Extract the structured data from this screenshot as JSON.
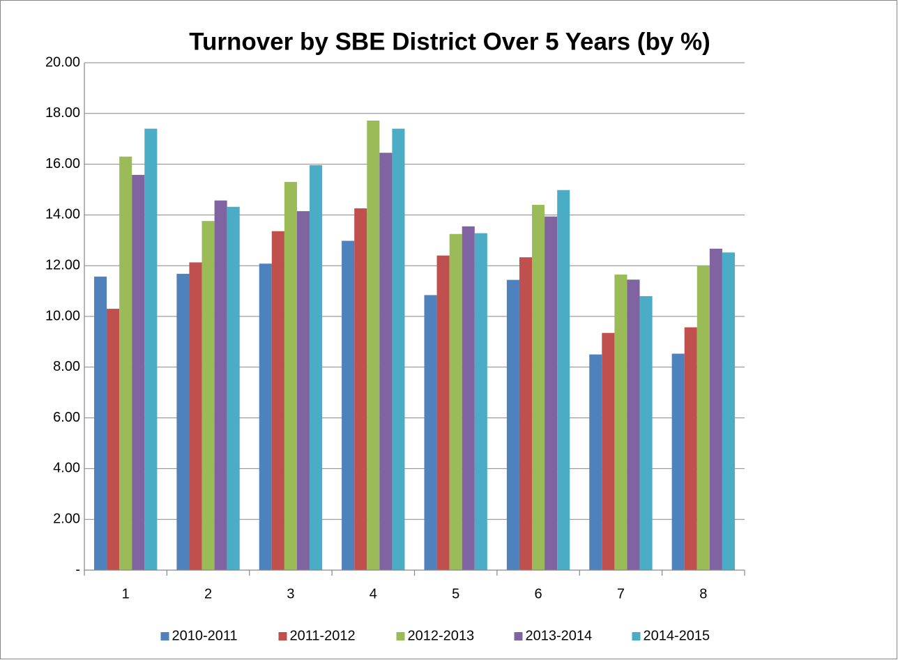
{
  "chart_data": {
    "type": "bar",
    "title": "Turnover by SBE District Over 5 Years (by %)",
    "categories": [
      "1",
      "2",
      "3",
      "4",
      "5",
      "6",
      "7",
      "8"
    ],
    "series": [
      {
        "name": "2010-2011",
        "color": "#4f81bd",
        "values": [
          11.57,
          11.68,
          12.08,
          12.98,
          10.84,
          11.44,
          8.5,
          8.53
        ]
      },
      {
        "name": "2011-2012",
        "color": "#c0504d",
        "values": [
          10.3,
          12.13,
          13.36,
          14.26,
          12.4,
          12.33,
          9.35,
          9.57
        ]
      },
      {
        "name": "2012-2013",
        "color": "#9bbb59",
        "values": [
          16.3,
          13.76,
          15.3,
          17.72,
          13.25,
          14.4,
          11.65,
          11.98
        ]
      },
      {
        "name": "2013-2014",
        "color": "#8064a2",
        "values": [
          15.58,
          14.57,
          14.15,
          16.45,
          13.55,
          13.94,
          11.45,
          12.67
        ]
      },
      {
        "name": "2014-2015",
        "color": "#4bacc6",
        "values": [
          17.4,
          14.32,
          15.96,
          17.4,
          13.28,
          14.98,
          10.8,
          12.52
        ]
      }
    ],
    "ylim": [
      0,
      20
    ],
    "yticks": [
      {
        "value": 0,
        "label": "-"
      },
      {
        "value": 2,
        "label": "2.00"
      },
      {
        "value": 4,
        "label": "4.00"
      },
      {
        "value": 6,
        "label": "6.00"
      },
      {
        "value": 8,
        "label": "8.00"
      },
      {
        "value": 10,
        "label": "10.00"
      },
      {
        "value": 12,
        "label": "12.00"
      },
      {
        "value": 14,
        "label": "14.00"
      },
      {
        "value": 16,
        "label": "16.00"
      },
      {
        "value": 18,
        "label": "18.00"
      },
      {
        "value": 20,
        "label": "20.00"
      }
    ],
    "grid": true,
    "legend": "bottom"
  }
}
